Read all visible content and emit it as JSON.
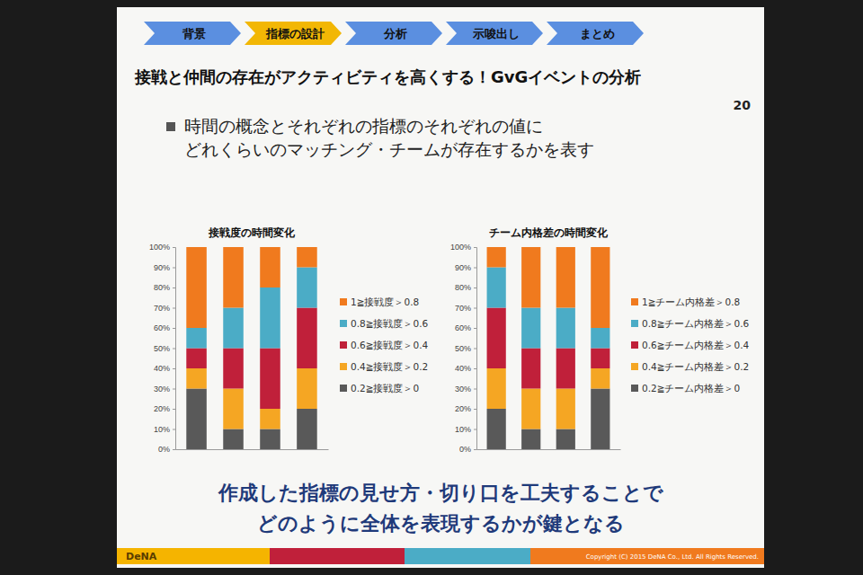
{
  "slide": {
    "steps": [
      "背景",
      "指標の設計",
      "分析",
      "示唆出し",
      "まとめ"
    ],
    "heading": "接戦と仲間の存在がアクティビティを高くする！GvGイベントの分析",
    "page": "20",
    "bullet": [
      "時間の概念とそれぞれの指標のそれぞれの値に",
      "どれくらいのマッチング・チームが存在するかを表す"
    ],
    "conclusion": [
      "作成した指標の見せ方・切り口を工夫することで",
      "どのように全体を表現するかが鍵となる"
    ],
    "logo": "DeNA",
    "copyright": "Copyright (C) 2015 DeNA Co., Ltd. All Rights Reserved."
  },
  "chart_data": [
    {
      "type": "bar",
      "stacked": true,
      "title": "接戦度の時間変化",
      "categories": [
        null,
        null,
        null,
        null
      ],
      "ylim": [
        0,
        100
      ],
      "yticks": [
        {
          "value": 0,
          "label": "0%"
        },
        {
          "value": 10,
          "label": "10%"
        },
        {
          "value": 20,
          "label": "20%"
        },
        {
          "value": 30,
          "label": "30%"
        },
        {
          "value": 40,
          "label": "40%"
        },
        {
          "value": 50,
          "label": "50%"
        },
        {
          "value": 60,
          "label": "60%"
        },
        {
          "value": 70,
          "label": "70%"
        },
        {
          "value": 80,
          "label": "80%"
        },
        {
          "value": 90,
          "label": "90%"
        },
        {
          "value": 100,
          "label": "100%"
        }
      ],
      "grid": false,
      "legend": "right",
      "tick_labels": "y",
      "series": [
        {
          "name": "1≧接戦度＞0.8",
          "color": "#f07a1e",
          "values": [
            40,
            30,
            20,
            10
          ]
        },
        {
          "name": "0.8≧接戦度＞0.6",
          "color": "#4bacc6",
          "values": [
            10,
            20,
            30,
            20
          ]
        },
        {
          "name": "0.6≧接戦度＞0.4",
          "color": "#c0203a",
          "values": [
            10,
            20,
            30,
            30
          ]
        },
        {
          "name": "0.4≧接戦度＞0.2",
          "color": "#f5a623",
          "values": [
            10,
            20,
            10,
            20
          ]
        },
        {
          "name": "0.2≧接戦度＞0",
          "color": "#595959",
          "values": [
            30,
            10,
            10,
            20
          ]
        }
      ]
    },
    {
      "type": "bar",
      "stacked": true,
      "title": "チーム内格差の時間変化",
      "categories": [
        null,
        null,
        null,
        null
      ],
      "ylim": [
        0,
        100
      ],
      "yticks": [
        {
          "value": 0,
          "label": "0%"
        },
        {
          "value": 10,
          "label": "10%"
        },
        {
          "value": 20,
          "label": "20%"
        },
        {
          "value": 30,
          "label": "30%"
        },
        {
          "value": 40,
          "label": "40%"
        },
        {
          "value": 50,
          "label": "50%"
        },
        {
          "value": 60,
          "label": "60%"
        },
        {
          "value": 70,
          "label": "70%"
        },
        {
          "value": 80,
          "label": "80%"
        },
        {
          "value": 90,
          "label": "90%"
        },
        {
          "value": 100,
          "label": "100%"
        }
      ],
      "grid": false,
      "legend": "right",
      "tick_labels": "y",
      "series": [
        {
          "name": "1≧チーム内格差＞0.8",
          "color": "#f07a1e",
          "values": [
            10,
            30,
            30,
            40
          ]
        },
        {
          "name": "0.8≧チーム内格差＞0.6",
          "color": "#4bacc6",
          "values": [
            20,
            20,
            20,
            10
          ]
        },
        {
          "name": "0.6≧チーム内格差＞0.4",
          "color": "#c0203a",
          "values": [
            30,
            20,
            20,
            10
          ]
        },
        {
          "name": "0.4≧チーム内格差＞0.2",
          "color": "#f5a623",
          "values": [
            20,
            20,
            20,
            10
          ]
        },
        {
          "name": "0.2≧チーム内格差＞0",
          "color": "#595959",
          "values": [
            20,
            10,
            10,
            30
          ]
        }
      ]
    }
  ]
}
